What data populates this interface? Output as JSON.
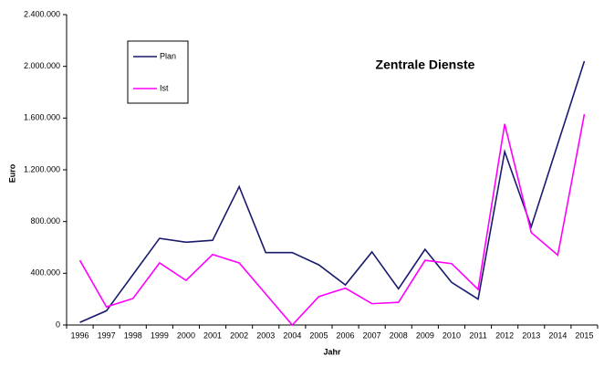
{
  "chart_data": {
    "type": "line",
    "title": "Zentrale Dienste",
    "x_label": "Jahr",
    "y_label": "Euro",
    "categories": [
      "1996",
      "1997",
      "1998",
      "1999",
      "2000",
      "2001",
      "2002",
      "2003",
      "2004",
      "2005",
      "2006",
      "2007",
      "2008",
      "2009",
      "2010",
      "2011",
      "2012",
      "2013",
      "2014",
      "2015"
    ],
    "series": [
      {
        "name": "Plan",
        "color": "#1a1a6e",
        "values": [
          20000,
          110000,
          390000,
          670000,
          640000,
          655000,
          1070000,
          560000,
          560000,
          465000,
          310000,
          565000,
          280000,
          585000,
          330000,
          200000,
          1340000,
          760000,
          1400000,
          2040000
        ]
      },
      {
        "name": "Ist",
        "color": "#ff00ff",
        "values": [
          500000,
          140000,
          205000,
          480000,
          345000,
          545000,
          480000,
          240000,
          0,
          220000,
          285000,
          165000,
          175000,
          500000,
          475000,
          275000,
          1555000,
          715000,
          540000,
          1630000
        ]
      }
    ],
    "ylim": [
      0,
      2400000
    ],
    "yticks": [
      {
        "value": 0,
        "label": "0"
      },
      {
        "value": 400000,
        "label": "400.000"
      },
      {
        "value": 800000,
        "label": "800.000"
      },
      {
        "value": 1200000,
        "label": "1.200.000"
      },
      {
        "value": 1600000,
        "label": "1.600.000"
      },
      {
        "value": 2000000,
        "label": "2.000.000"
      },
      {
        "value": 2400000,
        "label": "2.400.000"
      }
    ],
    "grid": false
  }
}
